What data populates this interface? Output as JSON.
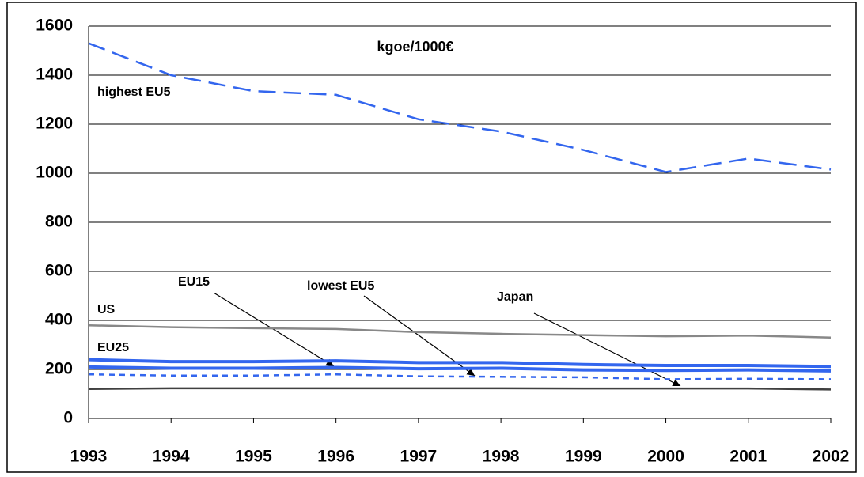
{
  "chart_data": {
    "type": "line",
    "title": "kgoe/1000€",
    "x": [
      1993,
      1994,
      1995,
      1996,
      1997,
      1998,
      1999,
      2000,
      2001,
      2002
    ],
    "xlim": [
      1993,
      2002
    ],
    "xticks": [
      1993,
      1994,
      1995,
      1996,
      1997,
      1998,
      1999,
      2000,
      2001,
      2002
    ],
    "ylim": [
      0,
      1600
    ],
    "yticks": [
      0,
      200,
      400,
      600,
      800,
      1000,
      1200,
      1400,
      1600
    ],
    "grid": true,
    "series": [
      {
        "name": "highest EU5",
        "color": "#3366ee",
        "dash": "dashed",
        "values": [
          1530,
          1400,
          1335,
          1320,
          1220,
          1170,
          1095,
          1005,
          1060,
          1015
        ]
      },
      {
        "name": "US",
        "color": "#888888",
        "dash": "solid",
        "values": [
          380,
          372,
          368,
          365,
          352,
          345,
          340,
          335,
          338,
          330
        ]
      },
      {
        "name": "EU25",
        "color": "#3366ee",
        "dash": "solid",
        "values": [
          240,
          232,
          232,
          235,
          228,
          228,
          220,
          216,
          216,
          212
        ]
      },
      {
        "name": "EU15",
        "color": "#3366ee",
        "dash": "solid",
        "values": [
          210,
          205,
          205,
          208,
          203,
          205,
          198,
          196,
          198,
          194
        ]
      },
      {
        "name": "lowest EU5",
        "color": "#3366ee",
        "dash": "dotted",
        "values": [
          180,
          175,
          175,
          180,
          172,
          170,
          168,
          160,
          162,
          160
        ]
      },
      {
        "name": "Japan",
        "color": "#404040",
        "dash": "solid",
        "values": [
          120,
          123,
          123,
          123,
          123,
          123,
          122,
          122,
          122,
          118
        ]
      }
    ]
  }
}
